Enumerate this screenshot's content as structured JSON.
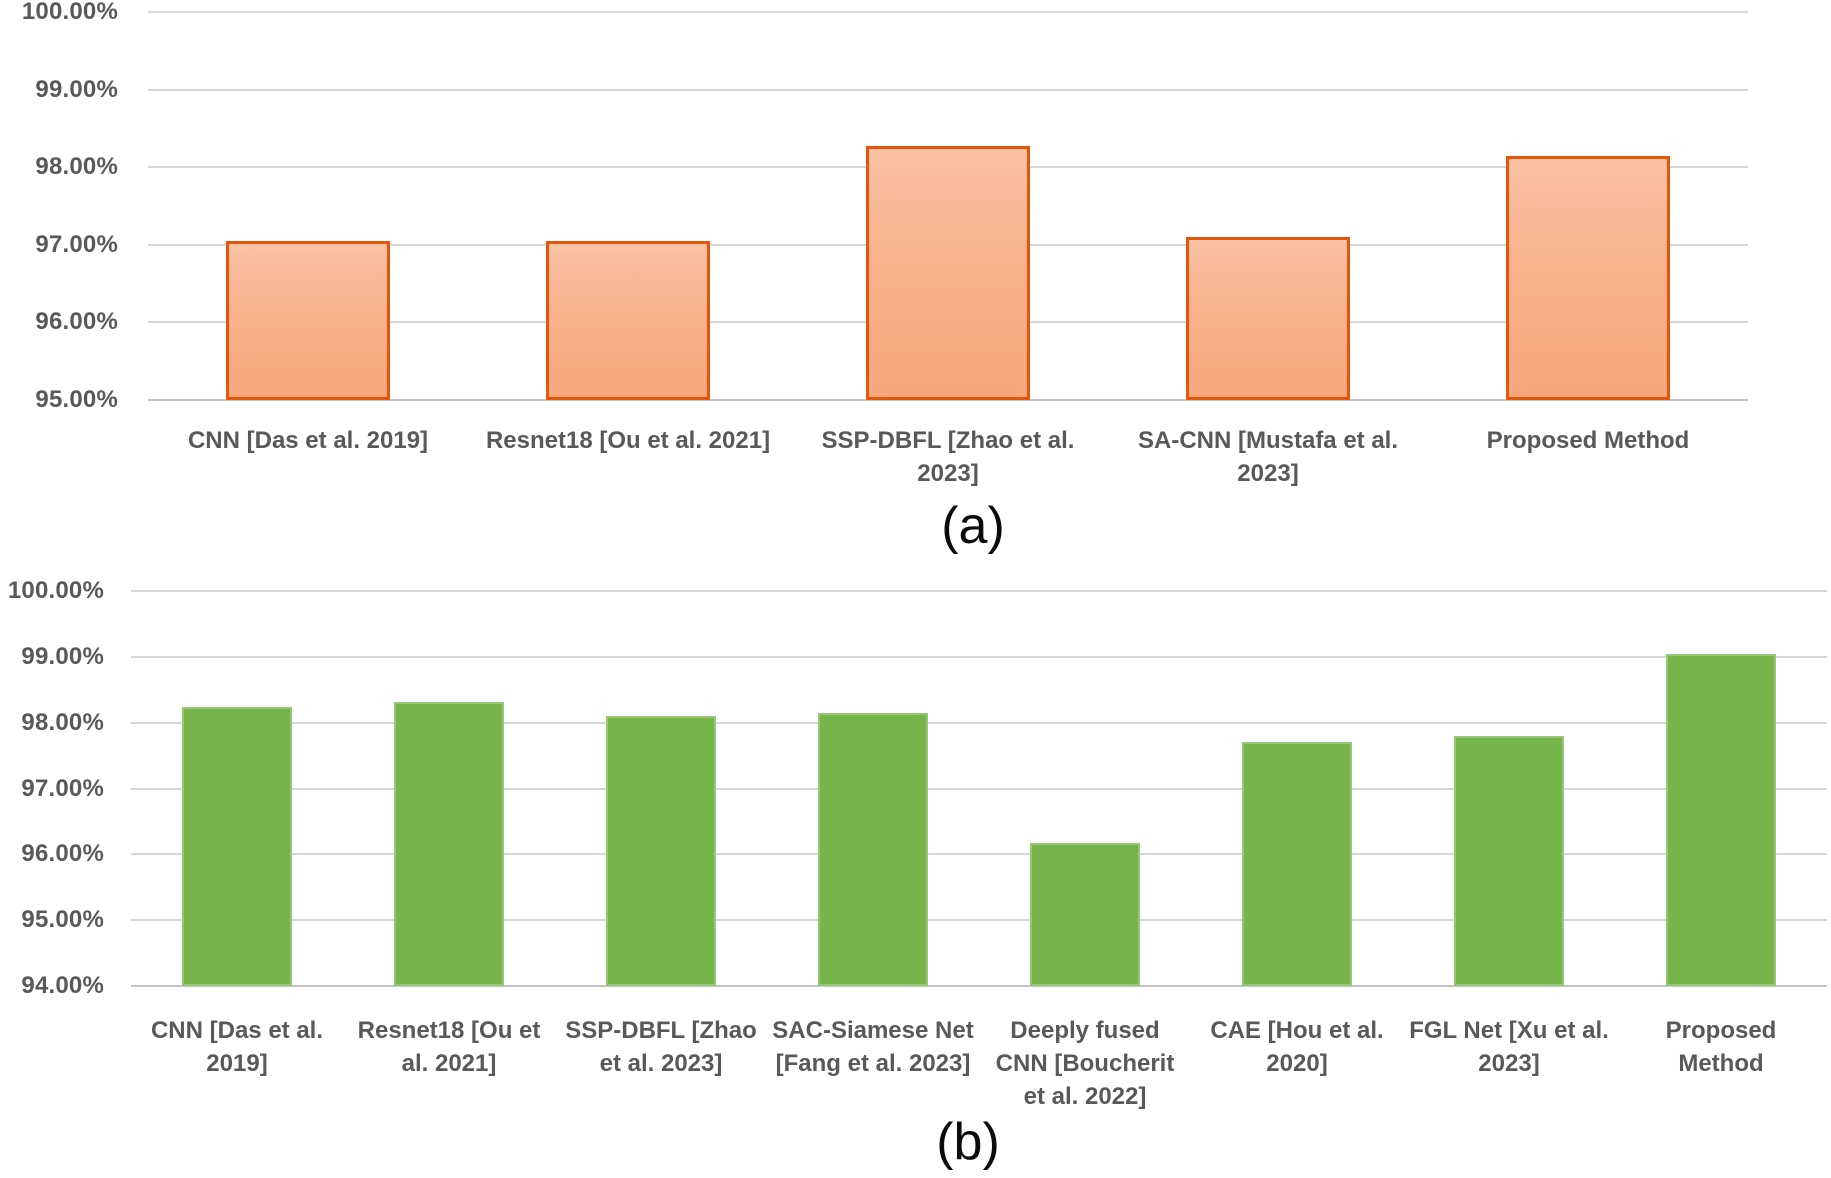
{
  "figure": {
    "background_color": "#FFFFFF",
    "text_color": "#595959",
    "gridline_color": "#D7D7D7",
    "panels": [
      "(a)",
      "(b)"
    ]
  },
  "chart_data": [
    {
      "panel": "a",
      "type": "bar",
      "caption": "(a)",
      "title": "",
      "xlabel": "",
      "ylabel": "",
      "unit": "%",
      "ylim": [
        95,
        100
      ],
      "ytick_step": 1,
      "ytick_labels": [
        "100.00%",
        "99.00%",
        "98.00%",
        "97.00%",
        "96.00%",
        "95.00%"
      ],
      "grid": true,
      "legend": "none",
      "bar_fill_top": "#F9C1A4",
      "bar_fill_bottom": "#F7A77E",
      "bar_border": "#E4570B",
      "categories": [
        "CNN [Das et al. 2019]",
        "Resnet18 [Ou et al. 2021]",
        "SSP-DBFL [Zhao et al.\n2023]",
        "SA-CNN [Mustafa et al.\n2023]",
        "Proposed Method"
      ],
      "values": [
        97.05,
        97.05,
        98.27,
        97.1,
        98.15
      ]
    },
    {
      "panel": "b",
      "type": "bar",
      "caption": "(b)",
      "title": "",
      "xlabel": "",
      "ylabel": "",
      "unit": "%",
      "ylim": [
        94,
        100
      ],
      "ytick_step": 1,
      "ytick_labels": [
        "100.00%",
        "99.00%",
        "98.00%",
        "97.00%",
        "96.00%",
        "95.00%",
        "94.00%"
      ],
      "grid": true,
      "legend": "none",
      "bar_fill": "#75B54A",
      "bar_border": "#97C776",
      "categories": [
        "CNN [Das et al.\n2019]",
        "Resnet18 [Ou et\nal. 2021]",
        "SSP-DBFL [Zhao\net al. 2023]",
        "SAC-Siamese Net\n[Fang et al. 2023]",
        "Deeply fused\nCNN [Boucherit\net al. 2022]",
        "CAE [Hou et al.\n2020]",
        "FGL Net [Xu et al.\n2023]",
        "Proposed\nMethod"
      ],
      "values": [
        98.24,
        98.31,
        98.1,
        98.15,
        96.17,
        97.7,
        97.79,
        99.05
      ]
    }
  ]
}
